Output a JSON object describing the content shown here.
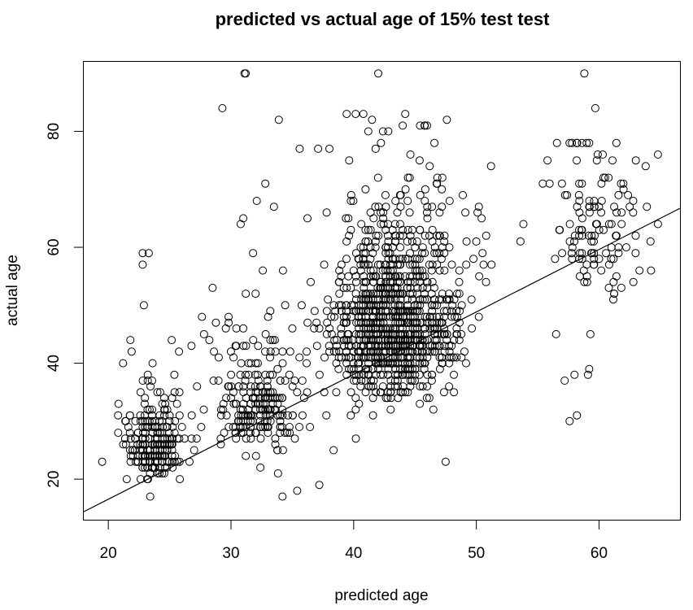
{
  "chart_data": {
    "type": "scatter",
    "title": "predicted vs actual age of 15% test test",
    "xlabel": "predicted age",
    "ylabel": "actual age",
    "xlim": [
      18,
      66.6
    ],
    "ylim": [
      13,
      92
    ],
    "xticks": [
      20,
      30,
      40,
      50,
      60
    ],
    "yticks": [
      20,
      40,
      60,
      80
    ],
    "grid": false,
    "legend": "none",
    "point_style": "open-circle",
    "regression_line": {
      "intercept": -5.0,
      "slope": 1.077
    },
    "clusters": [
      {
        "x_center": 23.8,
        "x_spread": 1.2,
        "y_center": 23,
        "y_spread": 5,
        "y_min": 17,
        "y_max": 60,
        "count": 230
      },
      {
        "x_center": 32.2,
        "x_spread": 1.8,
        "y_center": 29,
        "y_spread": 8,
        "y_min": 17,
        "y_max": 71,
        "count": 240
      },
      {
        "x_center": 42.8,
        "x_spread": 2.2,
        "y_center": 40,
        "y_spread": 11,
        "y_min": 17,
        "y_max": 83,
        "count": 900
      },
      {
        "x_center": 47.0,
        "x_spread": 1.5,
        "y_center": 42,
        "y_spread": 12,
        "y_min": 20,
        "y_max": 72,
        "count": 140
      },
      {
        "x_center": 59.5,
        "x_spread": 2.0,
        "y_center": 58,
        "y_spread": 10,
        "y_min": 30,
        "y_max": 78,
        "count": 110
      }
    ],
    "notable_points": [
      {
        "x": 19.5,
        "y": 23
      },
      {
        "x": 20.8,
        "y": 31
      },
      {
        "x": 21.2,
        "y": 40
      },
      {
        "x": 21.5,
        "y": 20
      },
      {
        "x": 21.9,
        "y": 42
      },
      {
        "x": 21.8,
        "y": 44
      },
      {
        "x": 22.8,
        "y": 59
      },
      {
        "x": 23.3,
        "y": 59
      },
      {
        "x": 22.8,
        "y": 57
      },
      {
        "x": 22.9,
        "y": 50
      },
      {
        "x": 25.2,
        "y": 34
      },
      {
        "x": 25.8,
        "y": 35
      },
      {
        "x": 26.8,
        "y": 31
      },
      {
        "x": 27.0,
        "y": 25
      },
      {
        "x": 27.8,
        "y": 45
      },
      {
        "x": 28.5,
        "y": 53
      },
      {
        "x": 29.3,
        "y": 84
      },
      {
        "x": 31.1,
        "y": 90
      },
      {
        "x": 31.2,
        "y": 90
      },
      {
        "x": 33.9,
        "y": 82
      },
      {
        "x": 32.8,
        "y": 71
      },
      {
        "x": 32.1,
        "y": 68
      },
      {
        "x": 31.0,
        "y": 65
      },
      {
        "x": 31.0,
        "y": 30
      },
      {
        "x": 33.5,
        "y": 67
      },
      {
        "x": 35.6,
        "y": 77
      },
      {
        "x": 37.1,
        "y": 77
      },
      {
        "x": 37.8,
        "y": 66
      },
      {
        "x": 36.5,
        "y": 54
      },
      {
        "x": 37.9,
        "y": 51
      },
      {
        "x": 38.5,
        "y": 49
      },
      {
        "x": 34.2,
        "y": 17
      },
      {
        "x": 35.0,
        "y": 46
      },
      {
        "x": 35.4,
        "y": 18
      },
      {
        "x": 37.2,
        "y": 19
      },
      {
        "x": 39.5,
        "y": 45
      },
      {
        "x": 42.0,
        "y": 90
      },
      {
        "x": 41.5,
        "y": 82
      },
      {
        "x": 44.2,
        "y": 83
      },
      {
        "x": 44.0,
        "y": 81
      },
      {
        "x": 45.8,
        "y": 81
      },
      {
        "x": 47.6,
        "y": 82
      },
      {
        "x": 46.2,
        "y": 74
      },
      {
        "x": 48.9,
        "y": 69
      },
      {
        "x": 49.1,
        "y": 66
      },
      {
        "x": 49.2,
        "y": 61
      },
      {
        "x": 50.2,
        "y": 67
      },
      {
        "x": 50.1,
        "y": 66
      },
      {
        "x": 51.2,
        "y": 74
      },
      {
        "x": 50.5,
        "y": 59
      },
      {
        "x": 50.8,
        "y": 62
      },
      {
        "x": 53.6,
        "y": 61
      },
      {
        "x": 50.2,
        "y": 48
      },
      {
        "x": 47.5,
        "y": 23
      },
      {
        "x": 46.5,
        "y": 32
      },
      {
        "x": 55.8,
        "y": 75
      },
      {
        "x": 56.5,
        "y": 45
      },
      {
        "x": 56.8,
        "y": 63
      },
      {
        "x": 57.2,
        "y": 37
      },
      {
        "x": 57.6,
        "y": 30
      },
      {
        "x": 58.2,
        "y": 31
      },
      {
        "x": 58.8,
        "y": 90
      },
      {
        "x": 59.7,
        "y": 84
      },
      {
        "x": 58.2,
        "y": 78
      },
      {
        "x": 59.9,
        "y": 76
      },
      {
        "x": 60.3,
        "y": 76
      },
      {
        "x": 60.5,
        "y": 72
      },
      {
        "x": 61.1,
        "y": 75
      },
      {
        "x": 62.8,
        "y": 54
      },
      {
        "x": 63.0,
        "y": 75
      },
      {
        "x": 63.8,
        "y": 74
      },
      {
        "x": 64.2,
        "y": 61
      },
      {
        "x": 64.8,
        "y": 64
      },
      {
        "x": 64.8,
        "y": 76
      },
      {
        "x": 63.3,
        "y": 56
      },
      {
        "x": 62.5,
        "y": 67
      },
      {
        "x": 63.9,
        "y": 67
      },
      {
        "x": 60.8,
        "y": 53
      },
      {
        "x": 58.0,
        "y": 38
      },
      {
        "x": 59.1,
        "y": 38
      },
      {
        "x": 59.2,
        "y": 39
      },
      {
        "x": 59.3,
        "y": 45
      },
      {
        "x": 59.6,
        "y": 57
      },
      {
        "x": 61.0,
        "y": 58
      }
    ]
  }
}
